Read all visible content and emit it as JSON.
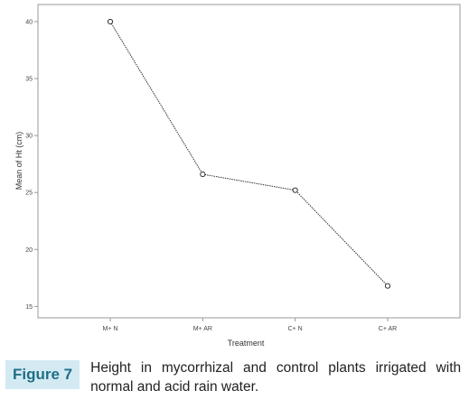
{
  "figure": {
    "label": "Figure 7",
    "caption": "Height in mycorrhizal and control plants irrigated with normal and acid rain water."
  },
  "chart_data": {
    "type": "line",
    "xlabel": "Treatment",
    "ylabel": "Mean of Ht (cm)",
    "categories": [
      "M+ N",
      "M+ AR",
      "C+ N",
      "C+ AR"
    ],
    "yticks": [
      "40",
      "35",
      "30",
      "25",
      "20",
      "15"
    ],
    "ylim": [
      14,
      41.5
    ],
    "series": [
      {
        "values": [
          40.0,
          26.6,
          25.2,
          16.8
        ]
      }
    ],
    "grid": false,
    "colors": {
      "line": "#333333",
      "frame": "#999999",
      "marker": "#333333"
    }
  }
}
